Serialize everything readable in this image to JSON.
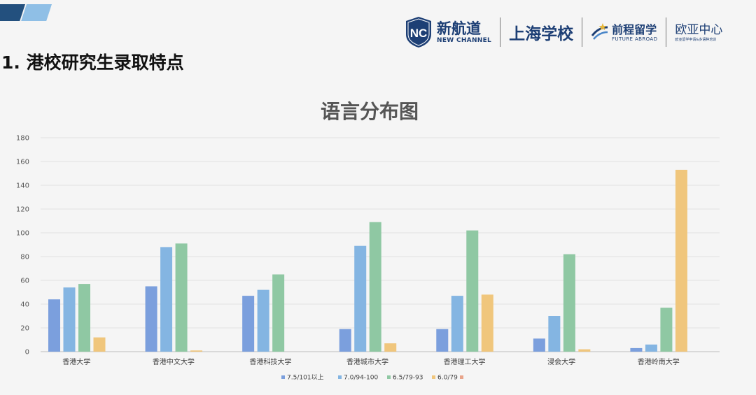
{
  "slide": {
    "heading": "1. 港校研究生录取特点"
  },
  "logos": {
    "nc_badge_text": "NC",
    "nc_cn": "新航道",
    "nc_en": "NEW CHANNEL",
    "campus": "上海学校",
    "fa_cn": "前程留学",
    "fa_en": "FUTURE ABROAD",
    "eu_cn": "欧亚中心",
    "eu_sub": "欧亚留学申请&多语种培训"
  },
  "colors": {
    "accent_dark": "#23507e",
    "accent_light": "#8fbfe6",
    "brand_navy": "#1d3f75"
  },
  "chart_data": {
    "type": "bar",
    "title": "语言分布图",
    "xlabel": "",
    "ylabel": "",
    "ylim": [
      0,
      180
    ],
    "yticks": [
      0,
      20,
      40,
      60,
      80,
      100,
      120,
      140,
      160,
      180
    ],
    "grid": true,
    "legend_position": "bottom",
    "categories": [
      "香港大学",
      "香港中文大学",
      "香港科技大学",
      "香港城市大学",
      "香港理工大学",
      "浸会大学",
      "香港岭南大学"
    ],
    "series": [
      {
        "name": "7.5/101以上",
        "color": "#7b9fdd",
        "values": [
          44,
          55,
          47,
          19,
          19,
          11,
          3
        ]
      },
      {
        "name": "7.0/94-100",
        "color": "#84b5e2",
        "values": [
          54,
          88,
          52,
          89,
          47,
          30,
          6
        ]
      },
      {
        "name": "6.5/79-93",
        "color": "#8fc8a3",
        "values": [
          57,
          91,
          65,
          109,
          102,
          82,
          37
        ]
      },
      {
        "name": "6.0/79",
        "color": "#f0c67c",
        "values": [
          12,
          1,
          0,
          7,
          48,
          2,
          153
        ]
      },
      {
        "name": "",
        "color": "#e8a48a",
        "values": [
          0,
          0,
          0,
          0,
          0,
          0,
          0
        ]
      }
    ]
  }
}
